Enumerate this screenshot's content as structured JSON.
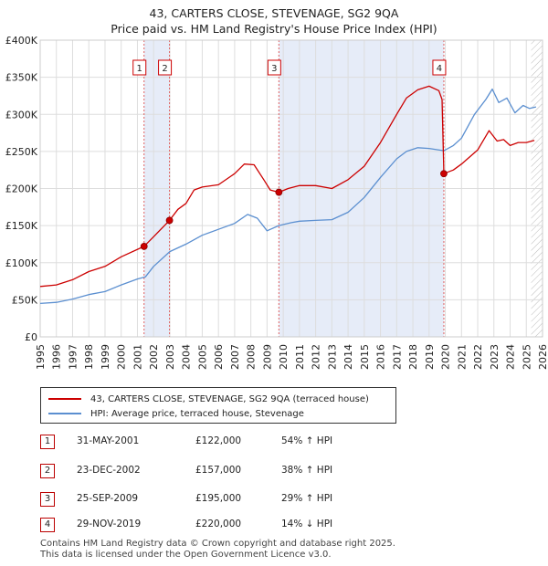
{
  "title": {
    "line1": "43, CARTERS CLOSE, STEVENAGE, SG2 9QA",
    "line2": "Price paid vs. HM Land Registry's House Price Index (HPI)"
  },
  "colors": {
    "property": "#cc0000",
    "hpi": "#5b8fd0",
    "shade": "#e6ecf8",
    "grid": "#dddddd",
    "marker_vline": "#e06060"
  },
  "legend": {
    "property_label": "43, CARTERS CLOSE, STEVENAGE, SG2 9QA (terraced house)",
    "hpi_label": "HPI: Average price, terraced house, Stevenage"
  },
  "chart_data": {
    "type": "line",
    "xlim": [
      1995,
      2026
    ],
    "ylim": [
      0,
      400000
    ],
    "x_ticks": [
      "1995",
      "1996",
      "1997",
      "1998",
      "1999",
      "2000",
      "2001",
      "2002",
      "2003",
      "2004",
      "2005",
      "2006",
      "2007",
      "2008",
      "2009",
      "2010",
      "2011",
      "2012",
      "2013",
      "2014",
      "2015",
      "2016",
      "2017",
      "2018",
      "2019",
      "2020",
      "2021",
      "2022",
      "2023",
      "2024",
      "2025",
      "2026"
    ],
    "y_ticks": [
      {
        "value": 0,
        "label": "£0"
      },
      {
        "value": 50000,
        "label": "£50K"
      },
      {
        "value": 100000,
        "label": "£100K"
      },
      {
        "value": 150000,
        "label": "£150K"
      },
      {
        "value": 200000,
        "label": "£200K"
      },
      {
        "value": 250000,
        "label": "£250K"
      },
      {
        "value": 300000,
        "label": "£300K"
      },
      {
        "value": 350000,
        "label": "£350K"
      },
      {
        "value": 400000,
        "label": "£400K"
      }
    ],
    "shaded_ranges": [
      [
        2001.41,
        2002.98
      ],
      [
        2009.73,
        2019.91
      ]
    ],
    "hatched_from": 2025.3,
    "series": [
      {
        "name": "43, CARTERS CLOSE, STEVENAGE, SG2 9QA (terraced house)",
        "color": "#cc0000",
        "points": [
          [
            1995,
            68000
          ],
          [
            1996,
            70000
          ],
          [
            1997,
            77000
          ],
          [
            1998,
            88000
          ],
          [
            1999,
            95000
          ],
          [
            2000,
            108000
          ],
          [
            2001.41,
            122000
          ],
          [
            2002,
            135000
          ],
          [
            2002.98,
            157000
          ],
          [
            2003.5,
            172000
          ],
          [
            2004,
            180000
          ],
          [
            2004.5,
            198000
          ],
          [
            2005,
            202000
          ],
          [
            2006,
            205000
          ],
          [
            2007,
            220000
          ],
          [
            2007.6,
            233000
          ],
          [
            2008.2,
            232000
          ],
          [
            2008.8,
            212000
          ],
          [
            2009.2,
            198000
          ],
          [
            2009.73,
            195000
          ],
          [
            2010.3,
            200000
          ],
          [
            2011,
            204000
          ],
          [
            2012,
            204000
          ],
          [
            2013,
            200000
          ],
          [
            2014,
            212000
          ],
          [
            2015,
            230000
          ],
          [
            2016,
            262000
          ],
          [
            2017,
            300000
          ],
          [
            2017.6,
            322000
          ],
          [
            2018.3,
            333000
          ],
          [
            2019,
            338000
          ],
          [
            2019.6,
            332000
          ],
          [
            2019.8,
            320000
          ],
          [
            2019.91,
            220000
          ],
          [
            2020.5,
            225000
          ],
          [
            2021,
            233000
          ],
          [
            2022,
            252000
          ],
          [
            2022.7,
            278000
          ],
          [
            2023.2,
            264000
          ],
          [
            2023.6,
            266000
          ],
          [
            2024,
            258000
          ],
          [
            2024.5,
            262000
          ],
          [
            2025,
            262000
          ],
          [
            2025.5,
            265000
          ]
        ],
        "markers": [
          [
            2001.41,
            122000
          ],
          [
            2002.98,
            157000
          ],
          [
            2009.73,
            195000
          ],
          [
            2019.91,
            220000
          ]
        ]
      },
      {
        "name": "HPI: Average price, terraced house, Stevenage",
        "color": "#5b8fd0",
        "points": [
          [
            1995,
            45000
          ],
          [
            1996,
            46500
          ],
          [
            1997,
            51000
          ],
          [
            1998,
            57000
          ],
          [
            1999,
            61000
          ],
          [
            2000,
            70000
          ],
          [
            2001,
            78000
          ],
          [
            2001.5,
            81000
          ],
          [
            2002,
            95000
          ],
          [
            2003,
            115000
          ],
          [
            2004,
            125000
          ],
          [
            2005,
            137000
          ],
          [
            2006,
            145000
          ],
          [
            2007,
            153000
          ],
          [
            2007.8,
            165000
          ],
          [
            2008.4,
            160000
          ],
          [
            2009,
            143000
          ],
          [
            2009.73,
            150000
          ],
          [
            2010.5,
            154000
          ],
          [
            2011,
            156000
          ],
          [
            2012,
            157000
          ],
          [
            2013,
            158000
          ],
          [
            2014,
            168000
          ],
          [
            2015,
            188000
          ],
          [
            2016,
            215000
          ],
          [
            2017,
            240000
          ],
          [
            2017.6,
            250000
          ],
          [
            2018.3,
            255000
          ],
          [
            2019,
            254000
          ],
          [
            2019.91,
            251000
          ],
          [
            2020.5,
            258000
          ],
          [
            2021,
            268000
          ],
          [
            2021.8,
            300000
          ],
          [
            2022.5,
            320000
          ],
          [
            2022.9,
            334000
          ],
          [
            2023.3,
            316000
          ],
          [
            2023.8,
            322000
          ],
          [
            2024.3,
            302000
          ],
          [
            2024.8,
            312000
          ],
          [
            2025.2,
            308000
          ],
          [
            2025.6,
            310000
          ]
        ]
      }
    ],
    "events": [
      {
        "label": "1",
        "x": 2001.41
      },
      {
        "label": "2",
        "x": 2002.98
      },
      {
        "label": "3",
        "x": 2009.73
      },
      {
        "label": "4",
        "x": 2019.91
      }
    ]
  },
  "transactions": [
    {
      "num": "1",
      "date": "31-MAY-2001",
      "price": "£122,000",
      "hpi": "54% ↑ HPI"
    },
    {
      "num": "2",
      "date": "23-DEC-2002",
      "price": "£157,000",
      "hpi": "38% ↑ HPI"
    },
    {
      "num": "3",
      "date": "25-SEP-2009",
      "price": "£195,000",
      "hpi": "29% ↑ HPI"
    },
    {
      "num": "4",
      "date": "29-NOV-2019",
      "price": "£220,000",
      "hpi": "14% ↓ HPI"
    }
  ],
  "footer": {
    "line1": "Contains HM Land Registry data © Crown copyright and database right 2025.",
    "line2": "This data is licensed under the Open Government Licence v3.0."
  }
}
